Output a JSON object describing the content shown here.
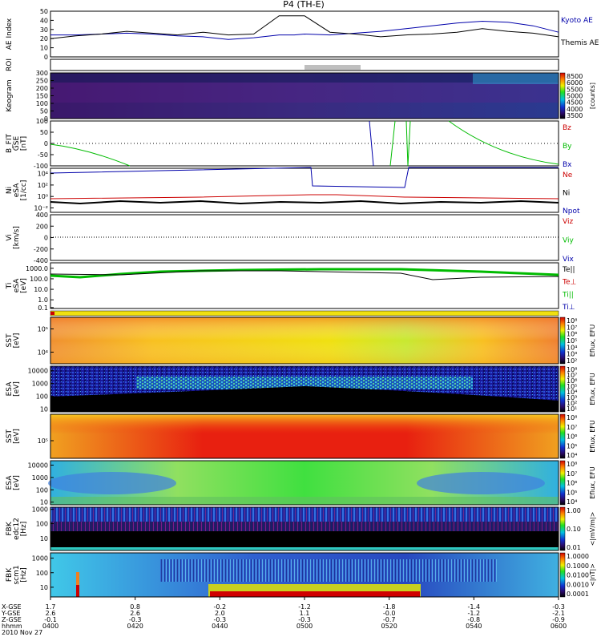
{
  "title": "P4 (TH-E)",
  "colors": {
    "kyoto": "#0000aa",
    "themis": "#000000",
    "red": "#cc0000",
    "green": "#00bb00",
    "blue": "#0000aa"
  },
  "chart_data": [
    {
      "type": "line",
      "panel": "ae",
      "ylabel": "AE Index",
      "yticks": [
        "50",
        "40",
        "30",
        "20",
        "10",
        "0"
      ],
      "ylim": [
        0,
        50
      ],
      "x": [
        0.0,
        0.05,
        0.1,
        0.15,
        0.2,
        0.25,
        0.3,
        0.35,
        0.4,
        0.45,
        0.48,
        0.5,
        0.55,
        0.6,
        0.65,
        0.7,
        0.75,
        0.8,
        0.85,
        0.9,
        0.95,
        1.0
      ],
      "series": [
        {
          "name": "Kyoto AE",
          "color": "#0000aa",
          "values": [
            24,
            24,
            25,
            26,
            25,
            23,
            22,
            19,
            21,
            24,
            24,
            25,
            24,
            26,
            28,
            31,
            34,
            37,
            39,
            38,
            34,
            27
          ]
        },
        {
          "name": "Themis AE",
          "color": "#000000",
          "values": [
            20,
            23,
            25,
            28,
            26,
            24,
            27,
            24,
            25,
            45,
            45,
            45,
            27,
            25,
            22,
            24,
            25,
            27,
            31,
            28,
            26,
            22
          ]
        }
      ]
    },
    {
      "type": "heatmap",
      "panel": "roi",
      "ylabel": "ROI"
    },
    {
      "type": "heatmap",
      "panel": "keogram",
      "ylabel": "Keogram",
      "yticks": [
        "300",
        "250",
        "200",
        "150",
        "100",
        "50",
        "0"
      ],
      "colorbar": {
        "ticks": [
          "8500",
          "6000",
          "5500",
          "5000",
          "4500",
          "4000",
          "3500"
        ],
        "label": "[counts]"
      }
    },
    {
      "type": "line",
      "panel": "bfit",
      "ylabel": "B_FIT",
      "ylabel2": "GSE",
      "ylabel3": "[nT]",
      "yticks": [
        "100",
        "50",
        "0",
        "-50",
        "-100"
      ],
      "ylim": [
        -100,
        100
      ],
      "series": [
        {
          "name": "Bz",
          "color": "#cc0000"
        },
        {
          "name": "By",
          "color": "#00bb00"
        },
        {
          "name": "Bx",
          "color": "#0000aa"
        }
      ]
    },
    {
      "type": "line",
      "panel": "ni",
      "ylabel": "Ni",
      "ylabel2": "eSA",
      "ylabel3": "[1/cc]",
      "yticks": [
        "10⁴",
        "10²",
        "10⁰",
        "10⁻²"
      ],
      "series": [
        {
          "name": "Ne",
          "color": "#cc0000"
        },
        {
          "name": "Ni",
          "color": "#000000"
        },
        {
          "name": "Npot",
          "color": "#0000aa"
        }
      ]
    },
    {
      "type": "line",
      "panel": "vi",
      "ylabel": "Vi",
      "ylabel3": "[km/s]",
      "yticks": [
        "400",
        "200",
        "0",
        "-200",
        "-400"
      ],
      "series": [
        {
          "name": "Viz",
          "color": "#cc0000"
        },
        {
          "name": "Viy",
          "color": "#00bb00"
        },
        {
          "name": "Vix",
          "color": "#0000aa"
        }
      ]
    },
    {
      "type": "line",
      "panel": "ti",
      "ylabel": "Ti",
      "ylabel2": "eSA",
      "ylabel3": "[eV]",
      "yticks": [
        "1000.0",
        "100.0",
        "10.0",
        "1.0",
        "0.1"
      ],
      "series": [
        {
          "name": "Te||",
          "color": "#000000"
        },
        {
          "name": "Te⊥",
          "color": "#cc0000"
        },
        {
          "name": "Ti||",
          "color": "#00bb00"
        },
        {
          "name": "Ti⊥",
          "color": "#0000aa"
        }
      ]
    },
    {
      "type": "heatmap",
      "panel": "sst_e",
      "ylabel": "SST",
      "ylabel2": "[eV]",
      "yticks": [
        "10⁵",
        "10⁴"
      ],
      "colorbar": {
        "ticks": [
          "10⁸",
          "10⁷",
          "10⁶",
          "10⁵",
          "10⁴",
          "10³",
          "10²"
        ],
        "label": "Eflux, EFU"
      }
    },
    {
      "type": "heatmap",
      "panel": "esa_e",
      "ylabel": "ESA",
      "ylabel2": "[eV]",
      "yticks": [
        "10000",
        "1000",
        "100",
        "10"
      ],
      "colorbar": {
        "ticks": [
          "10⁸",
          "10⁷",
          "10⁶",
          "10⁵",
          "10⁴",
          "10³",
          "10²",
          "10¹"
        ],
        "label": "Eflux, EFU"
      }
    },
    {
      "type": "heatmap",
      "panel": "sst_i",
      "ylabel": "SST",
      "ylabel2": "[eV]",
      "yticks": [
        "10⁵"
      ],
      "colorbar": {
        "ticks": [
          "10⁸",
          "10⁷",
          "10⁶",
          "10⁵",
          "10⁴"
        ],
        "label": "Eflux, EFU"
      }
    },
    {
      "type": "heatmap",
      "panel": "esa_i",
      "ylabel": "ESA",
      "ylabel2": "[eV]",
      "yticks": [
        "10000",
        "1000",
        "100",
        "10"
      ],
      "colorbar": {
        "ticks": [
          "10⁸",
          "10⁷",
          "10⁶",
          "10⁵",
          "10⁴"
        ],
        "label": "Eflux, EFU"
      }
    },
    {
      "type": "heatmap",
      "panel": "fbk_e",
      "ylabel": "FBK",
      "ylabel2": "edc12",
      "ylabel3": "[Hz]",
      "yticks": [
        "1000",
        "100",
        "10"
      ],
      "colorbar": {
        "ticks": [
          "1.00",
          "0.10",
          "0.01"
        ],
        "label": "<|mV/m|>"
      }
    },
    {
      "type": "heatmap",
      "panel": "fbk_b",
      "ylabel": "FBK",
      "ylabel2": "scm1",
      "ylabel3": "[Hz]",
      "yticks": [
        "1000",
        "100",
        "10"
      ],
      "colorbar": {
        "ticks": [
          "1.0000",
          "0.1000",
          "0.0100",
          "0.0010",
          "0.0001"
        ],
        "label": "<|nT|>"
      }
    }
  ],
  "xaxis": {
    "rows": [
      {
        "label": "X-GSE",
        "values": [
          "1.7",
          "0.8",
          "-0.2",
          "-1.2",
          "-1.8",
          "-1.4",
          "-0.3"
        ]
      },
      {
        "label": "Y-GSE",
        "values": [
          "2.6",
          "2.6",
          "2.0",
          "1.1",
          "-0.0",
          "-1.2",
          "-2.1"
        ]
      },
      {
        "label": "Z-GSE",
        "values": [
          "-0.1",
          "-0.3",
          "-0.3",
          "-0.3",
          "-0.7",
          "-0.8",
          "-0.9"
        ]
      },
      {
        "label": "hhmm",
        "values": [
          "0400",
          "0420",
          "0440",
          "0500",
          "0520",
          "0540",
          "0600"
        ]
      }
    ],
    "date": "2010 Nov 27"
  }
}
